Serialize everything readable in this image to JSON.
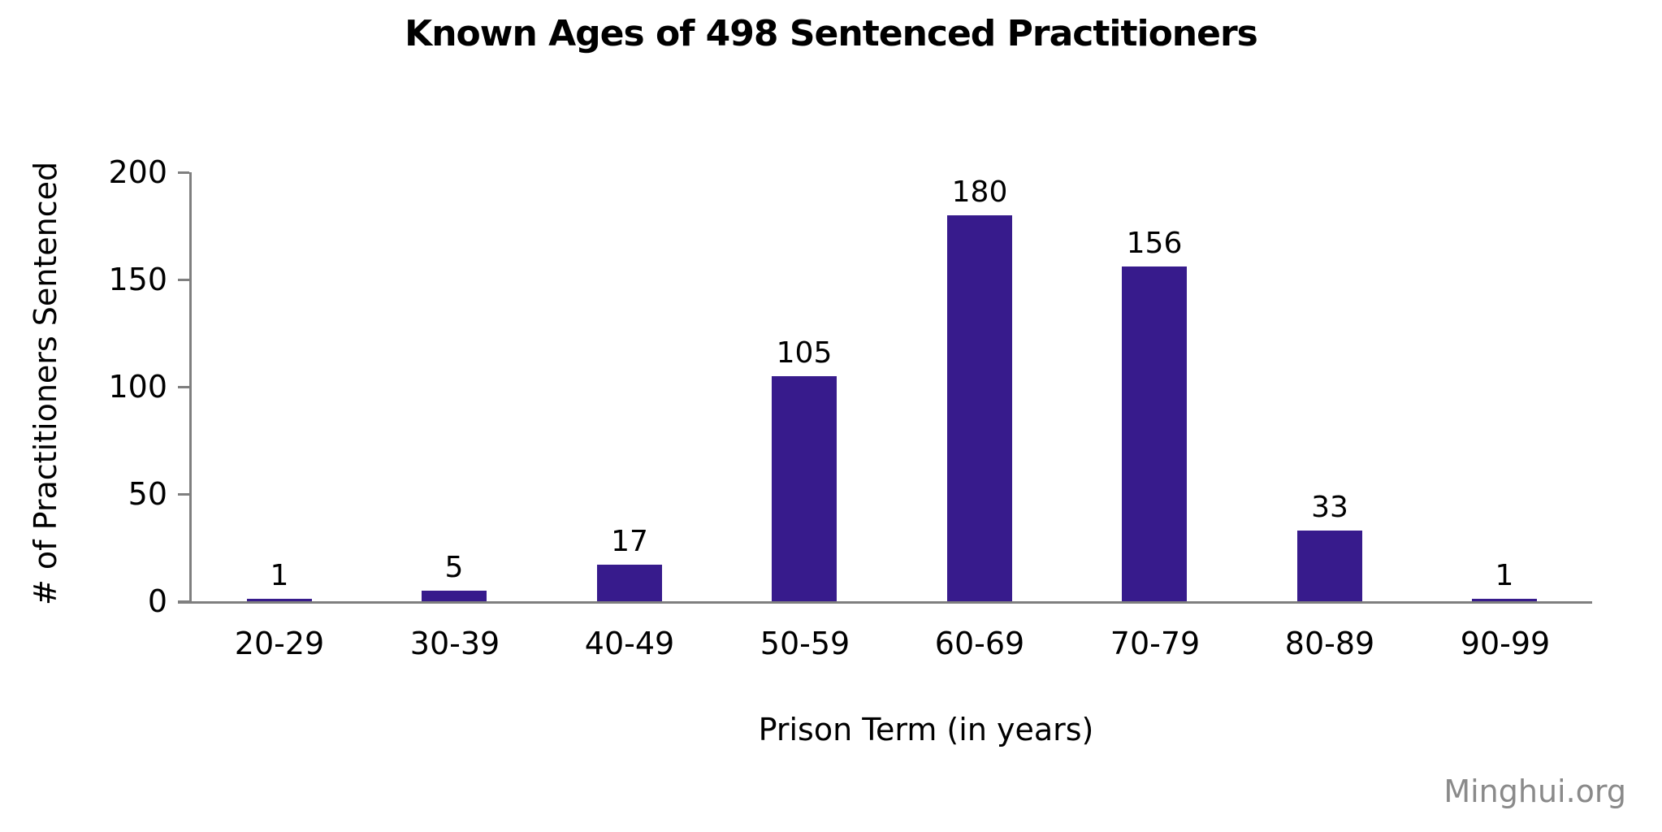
{
  "watermark": "Minghui.org",
  "chart_data": {
    "type": "bar",
    "title": "Known Ages of 498 Sentenced Practitioners",
    "xlabel": "Prison Term (in years)",
    "ylabel": "# of Practitioners Sentenced",
    "categories": [
      "20-29",
      "30-39",
      "40-49",
      "50-59",
      "60-69",
      "70-79",
      "80-89",
      "90-99"
    ],
    "values": [
      1,
      5,
      17,
      105,
      180,
      156,
      33,
      1
    ],
    "ylim": [
      0,
      200
    ],
    "yticks": [
      0,
      50,
      100,
      150,
      200
    ],
    "grid": false,
    "legend_position": "none",
    "data_labels_shown": true,
    "colors": {
      "bar": "#371B8C",
      "axis": "#7F7F7F",
      "text": "#000000",
      "watermark": "#8A8A8A",
      "background": "#FFFFFF"
    }
  }
}
